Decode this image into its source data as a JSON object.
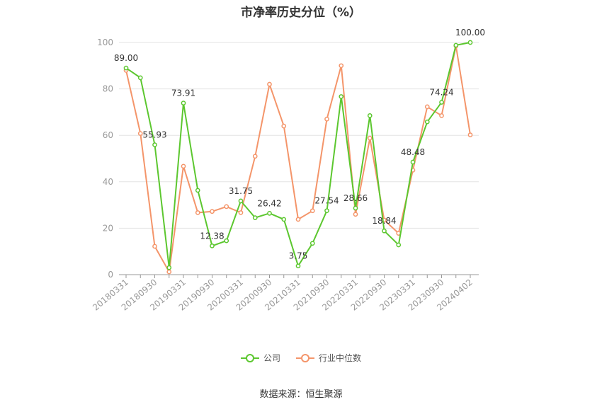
{
  "chart_data": {
    "type": "line",
    "title": "市净率历史分位（%）",
    "xlabel": "",
    "ylabel": "",
    "ylim": [
      0,
      100
    ],
    "yticks": [
      0,
      20,
      40,
      60,
      80,
      100
    ],
    "x": [
      "20180331",
      "20180630",
      "20180930",
      "20181231",
      "20190331",
      "20190630",
      "20190930",
      "20191231",
      "20200331",
      "20200630",
      "20200930",
      "20201231",
      "20210331",
      "20210630",
      "20210930",
      "20211231",
      "20220331",
      "20220630",
      "20220930",
      "20221231",
      "20230331",
      "20230630",
      "20230930",
      "20231231",
      "20240402"
    ],
    "xtick_labels": [
      "20180331",
      "20180930",
      "20190331",
      "20190930",
      "20200331",
      "20200930",
      "20210331",
      "20210930",
      "20220331",
      "20220930",
      "20230331",
      "20230930",
      "20240402"
    ],
    "series": [
      {
        "name": "公司",
        "color": "#5cc72f",
        "values": [
          89.0,
          84.8,
          55.93,
          3.0,
          73.91,
          36.3,
          12.38,
          14.6,
          31.75,
          24.5,
          26.42,
          23.8,
          3.75,
          13.5,
          27.54,
          76.7,
          28.66,
          68.5,
          18.84,
          12.8,
          48.48,
          65.8,
          74.24,
          98.8,
          100.0
        ],
        "labels": {
          "0": "89.00",
          "2": "55.93",
          "4": "73.91",
          "6": "12.38",
          "8": "31.75",
          "10": "26.42",
          "12": "3.75",
          "14": "27.54",
          "16": "28.66",
          "18": "18.84",
          "20": "48.48",
          "22": "74.24",
          "24": "100.00"
        }
      },
      {
        "name": "行业中位数",
        "color": "#f4956a",
        "values": [
          88.0,
          60.8,
          12.2,
          1.2,
          46.7,
          26.7,
          27.2,
          29.3,
          26.7,
          51.0,
          82.0,
          64.0,
          23.8,
          27.5,
          67.0,
          90.0,
          26.0,
          58.8,
          23.5,
          17.8,
          45.0,
          72.3,
          68.5,
          98.5,
          60.2
        ]
      }
    ],
    "grid": true,
    "legend_position": "bottom"
  },
  "footer": {
    "source": "数据来源：恒生聚源"
  }
}
